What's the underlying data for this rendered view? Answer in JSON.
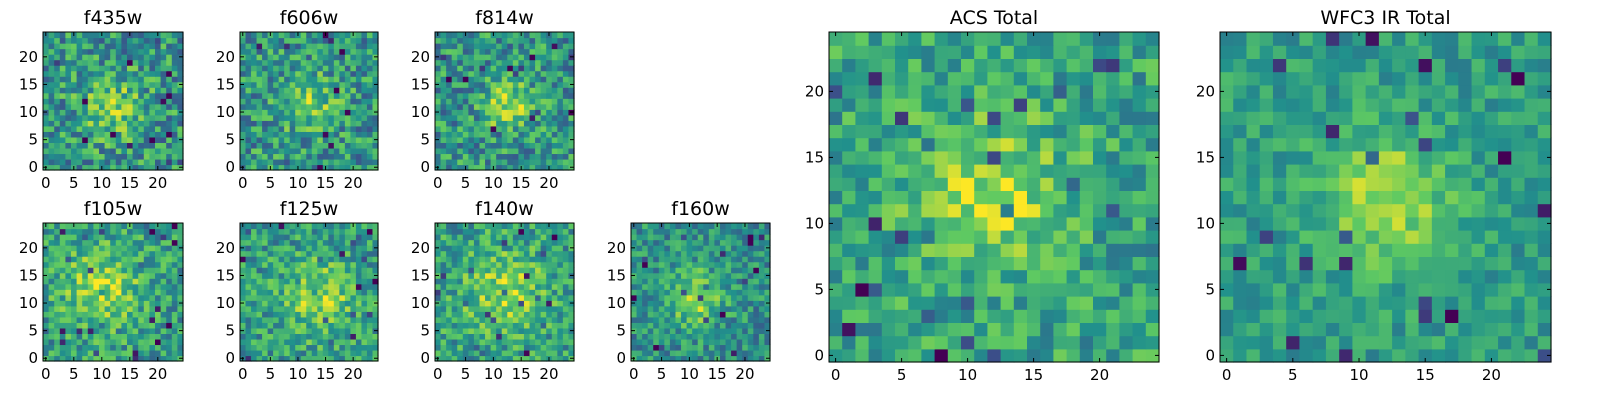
{
  "colormap": [
    "#440154",
    "#3b528b",
    "#21918c",
    "#5ec962",
    "#fde725"
  ],
  "chart_data": [
    {
      "type": "heatmap",
      "title": "f435w",
      "grid": 25,
      "xticks": [
        0,
        5,
        10,
        15,
        20
      ],
      "yticks": [
        0,
        5,
        10,
        15,
        20
      ],
      "peak": [
        12,
        11
      ],
      "peak_width": 4.0,
      "peak_amp": 0.25,
      "noise": 0.26,
      "base": 0.52
    },
    {
      "type": "heatmap",
      "title": "f606w",
      "grid": 25,
      "xticks": [
        0,
        5,
        10,
        15,
        20
      ],
      "yticks": [
        0,
        5,
        10,
        15,
        20
      ],
      "peak": [
        12,
        12
      ],
      "peak_width": 3.5,
      "peak_amp": 0.3,
      "noise": 0.26,
      "base": 0.52
    },
    {
      "type": "heatmap",
      "title": "f814w",
      "grid": 25,
      "xticks": [
        0,
        5,
        10,
        15,
        20
      ],
      "yticks": [
        0,
        5,
        10,
        15,
        20
      ],
      "peak": [
        13,
        11
      ],
      "peak_width": 3.0,
      "peak_amp": 0.35,
      "noise": 0.25,
      "base": 0.52
    },
    {
      "type": "heatmap",
      "title": "f105w",
      "grid": 25,
      "xticks": [
        0,
        5,
        10,
        15,
        20
      ],
      "yticks": [
        0,
        5,
        10,
        15,
        20
      ],
      "peak": [
        10,
        13
      ],
      "peak_width": 5.0,
      "peak_amp": 0.3,
      "noise": 0.22,
      "base": 0.55
    },
    {
      "type": "heatmap",
      "title": "f125w",
      "grid": 25,
      "xticks": [
        0,
        5,
        10,
        15,
        20
      ],
      "yticks": [
        0,
        5,
        10,
        15,
        20
      ],
      "peak": [
        14,
        11
      ],
      "peak_width": 4.5,
      "peak_amp": 0.3,
      "noise": 0.22,
      "base": 0.55
    },
    {
      "type": "heatmap",
      "title": "f140w",
      "grid": 25,
      "xticks": [
        0,
        5,
        10,
        15,
        20
      ],
      "yticks": [
        0,
        5,
        10,
        15,
        20
      ],
      "peak": [
        12,
        12
      ],
      "peak_width": 5.0,
      "peak_amp": 0.28,
      "noise": 0.22,
      "base": 0.56
    },
    {
      "type": "heatmap",
      "title": "f160w",
      "grid": 25,
      "xticks": [
        0,
        5,
        10,
        15,
        20
      ],
      "yticks": [
        0,
        5,
        10,
        15,
        20
      ],
      "peak": [
        11,
        11
      ],
      "peak_width": 3.5,
      "peak_amp": 0.35,
      "noise": 0.2,
      "base": 0.5
    },
    {
      "type": "heatmap",
      "title": "ACS Total",
      "grid": 25,
      "xticks": [
        0,
        5,
        10,
        15,
        20
      ],
      "yticks": [
        0,
        5,
        10,
        15,
        20
      ],
      "peak": [
        12,
        12
      ],
      "peak_width": 4.0,
      "peak_amp": 0.3,
      "noise": 0.2,
      "base": 0.58
    },
    {
      "type": "heatmap",
      "title": "WFC3 IR Total",
      "grid": 25,
      "xticks": [
        0,
        5,
        10,
        15,
        20
      ],
      "yticks": [
        0,
        5,
        10,
        15,
        20
      ],
      "peak": [
        12,
        12
      ],
      "peak_width": 3.5,
      "peak_amp": 0.35,
      "noise": 0.14,
      "base": 0.55
    }
  ]
}
